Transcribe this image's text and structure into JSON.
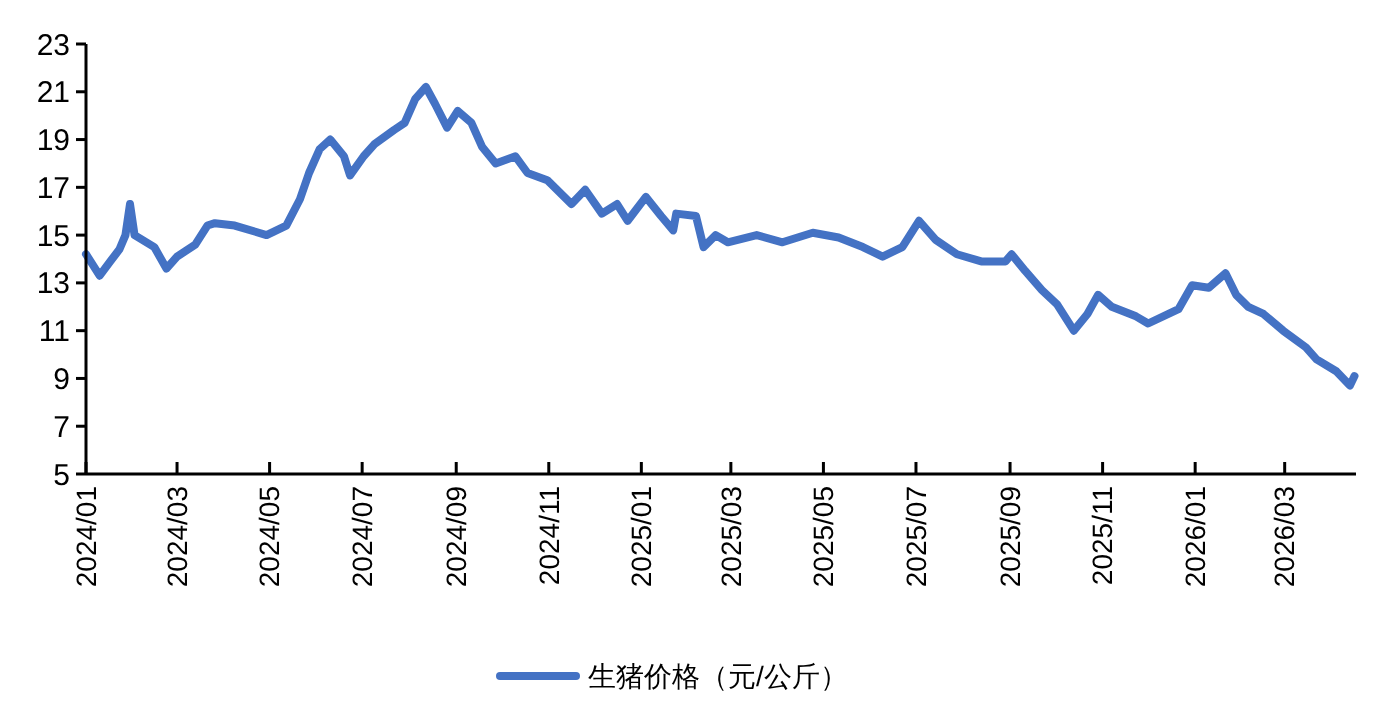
{
  "chart_data": {
    "type": "line",
    "x": [
      "2024-01-01",
      "2024-01-10",
      "2024-01-17",
      "2024-01-23",
      "2024-01-27",
      "2024-01-30",
      "2024-02-02",
      "2024-02-15",
      "2024-02-23",
      "2024-03-01",
      "2024-03-13",
      "2024-03-21",
      "2024-03-26",
      "2024-04-08",
      "2024-04-29",
      "2024-05-12",
      "2024-05-21",
      "2024-05-27",
      "2024-06-03",
      "2024-06-10",
      "2024-06-19",
      "2024-06-23",
      "2024-07-02",
      "2024-07-09",
      "2024-07-22",
      "2024-07-29",
      "2024-08-05",
      "2024-08-12",
      "2024-08-18",
      "2024-08-26",
      "2024-09-02",
      "2024-09-11",
      "2024-09-18",
      "2024-09-27",
      "2024-10-10",
      "2024-10-18",
      "2024-10-31",
      "2024-11-16",
      "2024-11-25",
      "2024-12-06",
      "2024-12-16",
      "2024-12-23",
      "2025-01-04",
      "2025-01-14",
      "2025-01-22",
      "2025-01-24",
      "2025-02-06",
      "2025-02-11",
      "2025-02-19",
      "2025-02-27",
      "2025-03-18",
      "2025-04-04",
      "2025-04-24",
      "2025-05-11",
      "2025-05-27",
      "2025-06-09",
      "2025-06-22",
      "2025-07-03",
      "2025-07-14",
      "2025-07-28",
      "2025-08-13",
      "2025-08-29",
      "2025-09-02",
      "2025-09-11",
      "2025-09-22",
      "2025-10-02",
      "2025-10-13",
      "2025-10-22",
      "2025-10-29",
      "2025-11-07",
      "2025-11-23",
      "2025-12-01",
      "2025-12-21",
      "2025-12-30",
      "2026-01-10",
      "2026-01-21",
      "2026-01-28",
      "2026-02-05",
      "2026-02-15",
      "2026-02-28",
      "2026-03-15",
      "2026-03-22",
      "2026-04-04",
      "2026-04-13",
      "2026-04-16"
    ],
    "series": [
      {
        "name": "生猪价格（元/公斤）",
        "color": "#4472c4",
        "values": [
          14.2,
          13.3,
          13.9,
          14.4,
          15.0,
          16.3,
          15.0,
          14.5,
          13.6,
          14.1,
          14.6,
          15.4,
          15.5,
          15.4,
          15.0,
          15.4,
          16.5,
          17.6,
          18.6,
          19.0,
          18.3,
          17.5,
          18.3,
          18.8,
          19.4,
          19.7,
          20.7,
          21.2,
          20.5,
          19.5,
          20.2,
          19.7,
          18.7,
          18.0,
          18.3,
          17.6,
          17.3,
          16.3,
          16.9,
          15.9,
          16.3,
          15.6,
          16.6,
          15.8,
          15.2,
          15.9,
          15.8,
          14.5,
          15.0,
          14.7,
          15.0,
          14.7,
          15.1,
          14.9,
          14.5,
          14.1,
          14.5,
          15.6,
          14.8,
          14.2,
          13.9,
          13.9,
          14.2,
          13.5,
          12.7,
          12.1,
          11.0,
          11.7,
          12.5,
          12.0,
          11.6,
          11.3,
          11.9,
          12.9,
          12.8,
          13.4,
          12.5,
          12.0,
          11.7,
          11.0,
          10.3,
          9.8,
          9.3,
          8.7,
          9.1
        ]
      }
    ],
    "xlim": [
      "2024-01-01",
      "2026-04-17"
    ],
    "xticks": [
      {
        "value": "2024-01-01",
        "label": "2024/01"
      },
      {
        "value": "2024-03-01",
        "label": "2024/03"
      },
      {
        "value": "2024-05-01",
        "label": "2024/05"
      },
      {
        "value": "2024-07-01",
        "label": "2024/07"
      },
      {
        "value": "2024-09-01",
        "label": "2024/09"
      },
      {
        "value": "2024-11-01",
        "label": "2024/11"
      },
      {
        "value": "2025-01-01",
        "label": "2025/01"
      },
      {
        "value": "2025-03-01",
        "label": "2025/03"
      },
      {
        "value": "2025-05-01",
        "label": "2025/05"
      },
      {
        "value": "2025-07-01",
        "label": "2025/07"
      },
      {
        "value": "2025-09-01",
        "label": "2025/09"
      },
      {
        "value": "2025-11-01",
        "label": "2025/11"
      },
      {
        "value": "2026-01-01",
        "label": "2026/01"
      },
      {
        "value": "2026-03-01",
        "label": "2026/03"
      }
    ],
    "ylim": [
      5,
      23
    ],
    "yticks": [
      5,
      7,
      9,
      11,
      13,
      15,
      17,
      19,
      21,
      23
    ],
    "grid": false,
    "legend": "bottom",
    "line_style": "solid"
  }
}
